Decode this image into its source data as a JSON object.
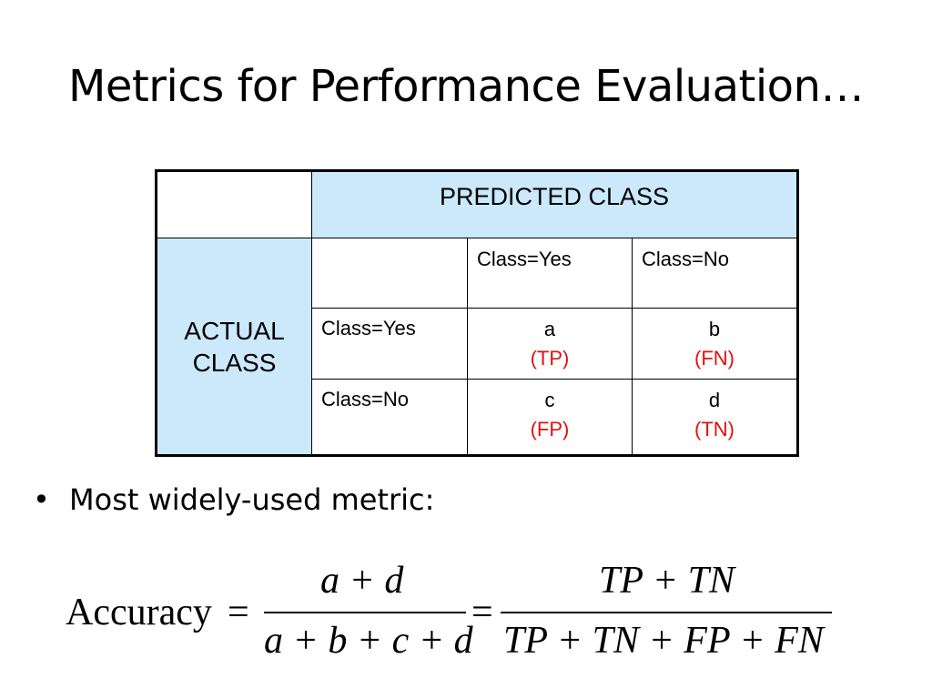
{
  "slide": {
    "title": "Metrics for Performance Evaluation…"
  },
  "confusion_matrix": {
    "predicted_header": "PREDICTED CLASS",
    "actual_header_line1": "ACTUAL",
    "actual_header_line2": "CLASS",
    "columns": [
      "Class=Yes",
      "Class=No"
    ],
    "rows": [
      {
        "label": "Class=Yes",
        "cells": [
          {
            "value": "a",
            "abbr": "(TP)"
          },
          {
            "value": "b",
            "abbr": "(FN)"
          }
        ]
      },
      {
        "label": "Class=No",
        "cells": [
          {
            "value": "c",
            "abbr": "(FP)"
          },
          {
            "value": "d",
            "abbr": "(TN)"
          }
        ]
      }
    ],
    "colors": {
      "header_fill": "#cce8fb",
      "abbr_text": "#e3100e",
      "border": "#000000"
    }
  },
  "bullet": {
    "symbol": "•",
    "text": "Most widely-used metric:"
  },
  "formula": {
    "lhs": "Accuracy",
    "equals": "=",
    "frac1_num": "a + d",
    "frac1_den": "a + b + c + d",
    "equals2": "=",
    "frac2_num": "TP + TN",
    "frac2_den": "TP + TN + FP + FN"
  }
}
